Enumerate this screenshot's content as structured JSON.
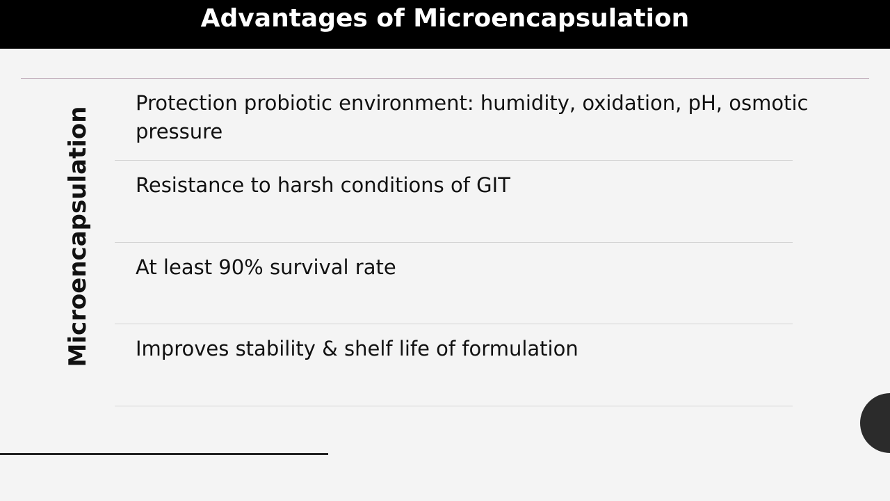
{
  "header": {
    "title": "Advantages of Microencapsulation"
  },
  "side_label": "Microencapsulation",
  "items": [
    "Protection probiotic environment: humidity, oxidation, pH, osmotic pressure",
    "Resistance to harsh conditions of GIT",
    "At least 90% survival rate",
    "Improves stability & shelf life of formulation"
  ]
}
